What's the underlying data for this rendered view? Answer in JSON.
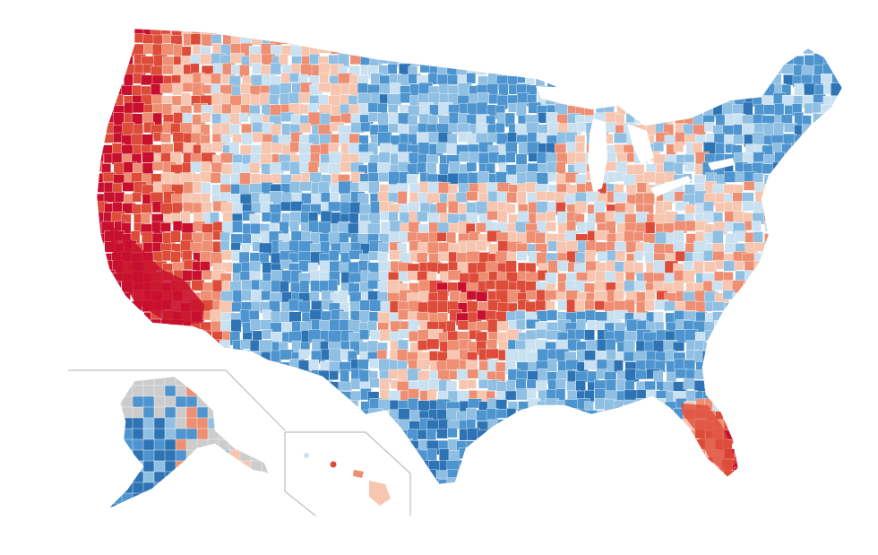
{
  "map": {
    "palette": {
      "red_dark": "#c8102e",
      "red_mid": "#dd4b39",
      "red_light": "#ee8f73",
      "red_pale": "#f7c6b0",
      "blue_pale": "#c9e1f1",
      "blue_light": "#8fbfe2",
      "blue_mid": "#4e95cf",
      "blue_dark": "#2e74b5",
      "no_data": "#cccccc",
      "inset_border": "#bdbdbd",
      "background": "#ffffff"
    },
    "regions": [
      {
        "name": "contiguous-us",
        "visible": true
      },
      {
        "name": "alaska-inset",
        "visible": true
      },
      {
        "name": "hawaii-inset",
        "visible": true
      }
    ]
  }
}
